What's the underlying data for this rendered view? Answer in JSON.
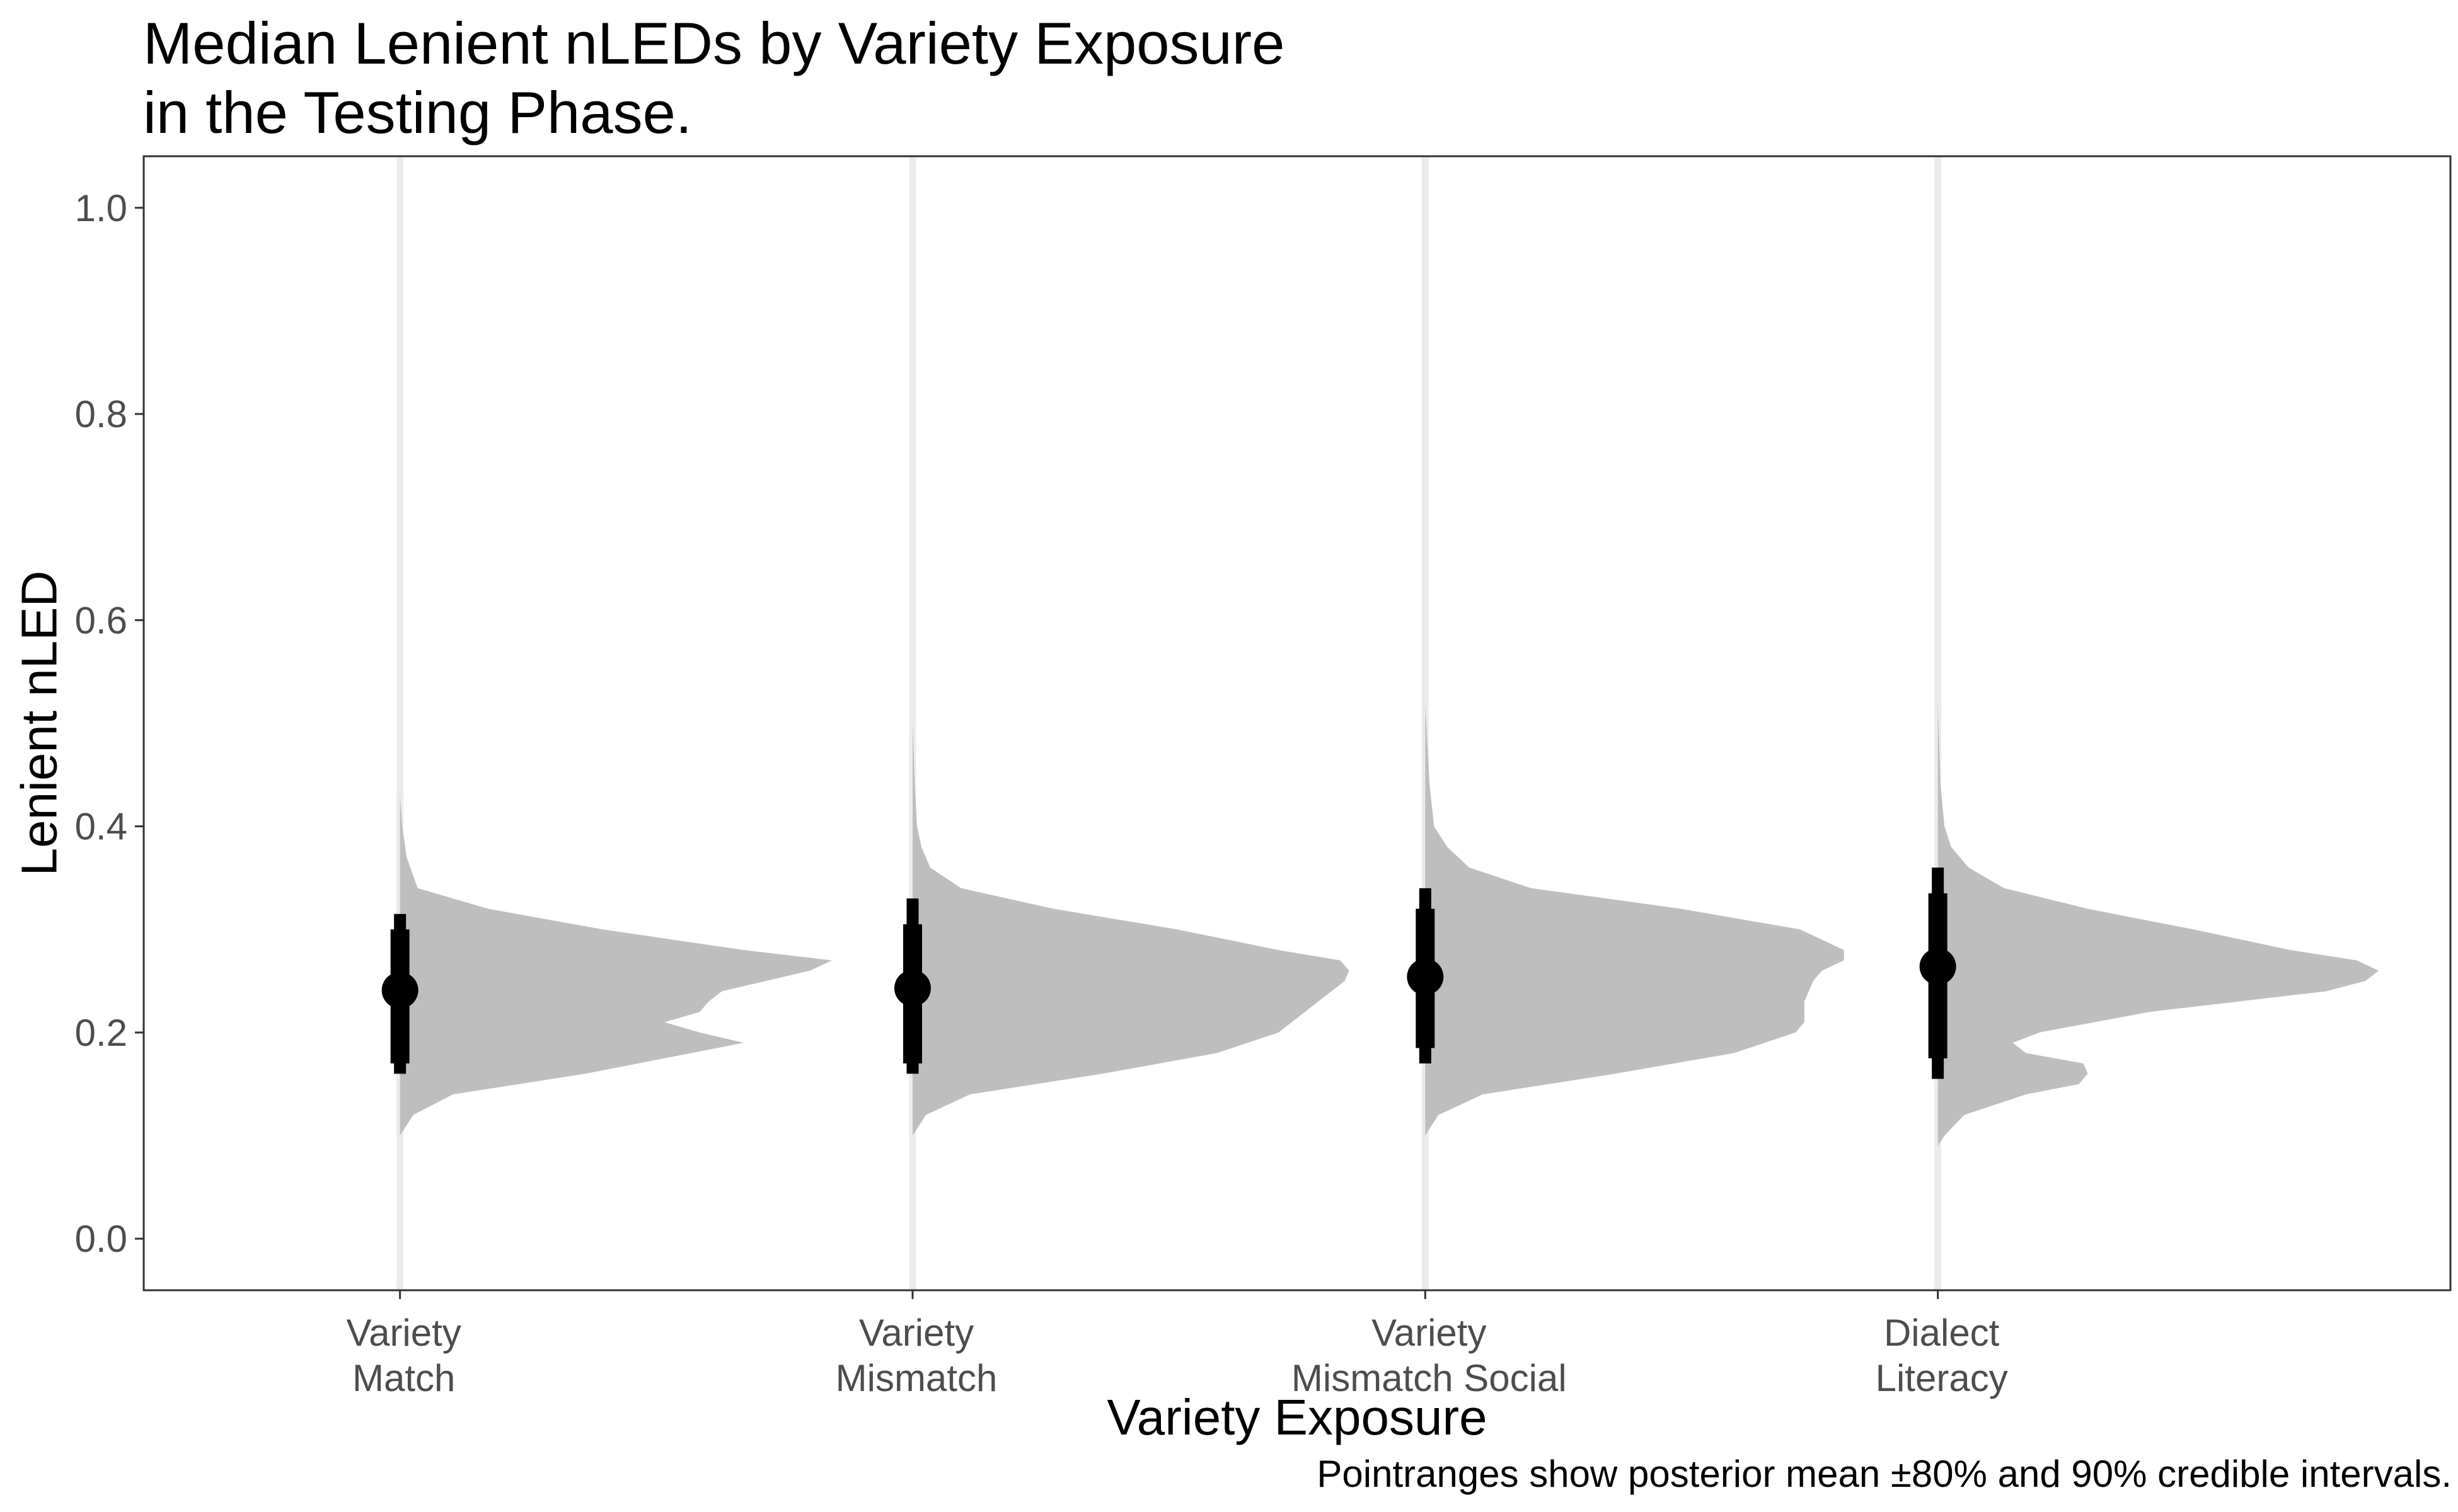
{
  "title": [
    "Median Lenient nLEDs by Variety Exposure",
    "in the Testing Phase."
  ],
  "caption": "Pointranges show posterior mean ±80% and 90% credible intervals.",
  "colors": {
    "density_fill": "#bebebe",
    "gridline": "#ebebeb",
    "pointrange": "#000000",
    "axis_text": "#4d4d4d",
    "panel_border": "#333333"
  },
  "chart_data": {
    "type": "violin",
    "title": "Median Lenient nLEDs by Variety Exposure in the Testing Phase.",
    "xlabel": "Variety Exposure",
    "ylabel": "Lenient nLED",
    "ylim": [
      -0.05,
      1.05
    ],
    "yticks": [
      0.0,
      0.2,
      0.4,
      0.6,
      0.8,
      1.0
    ],
    "ytick_labels": [
      "0.0",
      "0.2",
      "0.4",
      "0.6",
      "0.8",
      "1.0"
    ],
    "grid": false,
    "categories": [
      {
        "lines": [
          "Variety",
          "Match"
        ]
      },
      {
        "lines": [
          "Variety",
          "Mismatch"
        ]
      },
      {
        "lines": [
          "Variety",
          "Mismatch Social"
        ]
      },
      {
        "lines": [
          "Dialect",
          "Literacy"
        ]
      }
    ],
    "pointranges": [
      {
        "mean": 0.241,
        "ci80": [
          0.17,
          0.3
        ],
        "ci90": [
          0.16,
          0.315
        ]
      },
      {
        "mean": 0.243,
        "ci80": [
          0.17,
          0.305
        ],
        "ci90": [
          0.16,
          0.33
        ]
      },
      {
        "mean": 0.254,
        "ci80": [
          0.185,
          0.32
        ],
        "ci90": [
          0.17,
          0.34
        ]
      },
      {
        "mean": 0.264,
        "ci80": [
          0.175,
          0.335
        ],
        "ci90": [
          0.155,
          0.36
        ]
      }
    ],
    "densities": [
      {
        "y": [
          0.1,
          0.12,
          0.14,
          0.16,
          0.18,
          0.19,
          0.2,
          0.21,
          0.22,
          0.23,
          0.24,
          0.25,
          0.26,
          0.27,
          0.28,
          0.3,
          0.32,
          0.34,
          0.37,
          0.4,
          0.43
        ],
        "w": [
          0.0,
          0.03,
          0.12,
          0.42,
          0.66,
          0.78,
          0.68,
          0.6,
          0.68,
          0.7,
          0.73,
          0.83,
          0.93,
          0.98,
          0.78,
          0.46,
          0.2,
          0.04,
          0.015,
          0.005,
          0.0
        ]
      },
      {
        "y": [
          0.1,
          0.12,
          0.14,
          0.16,
          0.18,
          0.2,
          0.22,
          0.23,
          0.24,
          0.25,
          0.26,
          0.27,
          0.28,
          0.3,
          0.32,
          0.34,
          0.36,
          0.38,
          0.4,
          0.44,
          0.5
        ],
        "w": [
          0.0,
          0.03,
          0.13,
          0.43,
          0.69,
          0.83,
          0.89,
          0.92,
          0.95,
          0.98,
          0.99,
          0.97,
          0.83,
          0.6,
          0.32,
          0.11,
          0.04,
          0.02,
          0.01,
          0.005,
          0.0
        ]
      },
      {
        "y": [
          0.1,
          0.12,
          0.14,
          0.16,
          0.18,
          0.2,
          0.21,
          0.22,
          0.23,
          0.24,
          0.25,
          0.26,
          0.27,
          0.28,
          0.3,
          0.32,
          0.34,
          0.36,
          0.38,
          0.4,
          0.44,
          0.52
        ],
        "w": [
          0.0,
          0.03,
          0.13,
          0.43,
          0.7,
          0.84,
          0.86,
          0.86,
          0.86,
          0.87,
          0.88,
          0.9,
          0.95,
          0.95,
          0.85,
          0.58,
          0.24,
          0.1,
          0.05,
          0.02,
          0.01,
          0.0
        ]
      },
      {
        "y": [
          0.09,
          0.1,
          0.12,
          0.14,
          0.15,
          0.16,
          0.17,
          0.18,
          0.19,
          0.2,
          0.22,
          0.24,
          0.25,
          0.26,
          0.27,
          0.28,
          0.3,
          0.32,
          0.34,
          0.36,
          0.38,
          0.4,
          0.44,
          0.52
        ],
        "w": [
          0.0,
          0.015,
          0.06,
          0.2,
          0.32,
          0.34,
          0.33,
          0.2,
          0.17,
          0.23,
          0.48,
          0.88,
          0.97,
          1.0,
          0.95,
          0.8,
          0.58,
          0.34,
          0.15,
          0.07,
          0.03,
          0.015,
          0.006,
          0.0
        ]
      }
    ]
  }
}
